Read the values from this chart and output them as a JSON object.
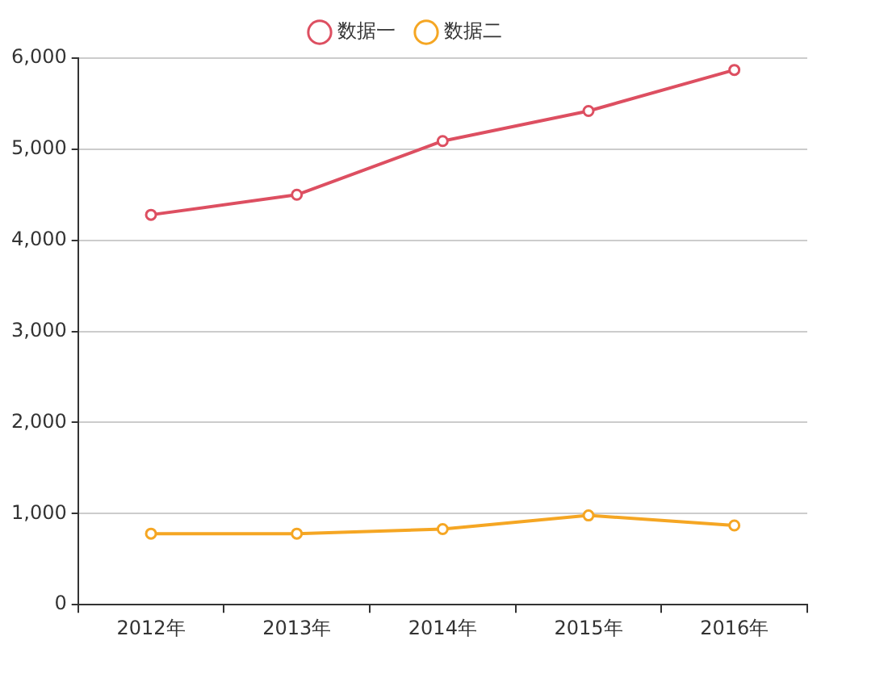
{
  "chart_data": {
    "type": "line",
    "categories": [
      "2012年",
      "2013年",
      "2014年",
      "2015年",
      "2016年"
    ],
    "series": [
      {
        "name": "数据一",
        "color": "#dd4f61",
        "values": [
          4280,
          4500,
          5090,
          5420,
          5870
        ]
      },
      {
        "name": "数据二",
        "color": "#f5a623",
        "values": [
          780,
          780,
          830,
          980,
          870
        ]
      }
    ],
    "ylim": [
      0,
      6000
    ],
    "yticks": [
      0,
      {
        "value": 1000,
        "label": "1,000"
      },
      {
        "value": 2000,
        "label": "2,000"
      },
      {
        "value": 3000,
        "label": "3,000"
      },
      {
        "value": 4000,
        "label": "4,000"
      },
      {
        "value": 5000,
        "label": "5,000"
      },
      {
        "value": 6000,
        "label": "6,000"
      }
    ],
    "grid": "y",
    "legend": "top",
    "marker": "circle",
    "line_style": "solid"
  }
}
